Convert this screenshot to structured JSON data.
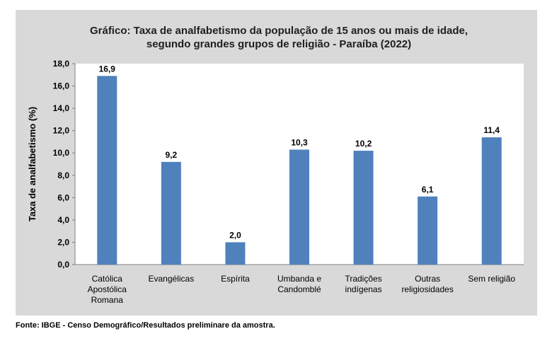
{
  "chart_data": {
    "type": "bar",
    "title_lines": [
      "Gráfico: Taxa de analfabetismo da população de 15 anos ou mais de idade,",
      "segundo grandes grupos de religião - Paraíba (2022)"
    ],
    "categories": [
      [
        "Católica",
        "Apostólica",
        "Romana"
      ],
      [
        "Evangélicas"
      ],
      [
        "Espírita"
      ],
      [
        "Umbanda e",
        "Candomblé"
      ],
      [
        "Tradições",
        "indígenas"
      ],
      [
        "Outras",
        "religiosidades"
      ],
      [
        "Sem religião"
      ]
    ],
    "values": [
      16.9,
      9.2,
      2.0,
      10.3,
      10.2,
      6.1,
      11.4
    ],
    "data_labels": [
      "16,9",
      "9,2",
      "2,0",
      "10,3",
      "10,2",
      "6,1",
      "11,4"
    ],
    "ylabel": "Taxa de analfabetismo (%)",
    "xlabel": "",
    "ylim": [
      0,
      18
    ],
    "yticks": [
      0,
      2,
      4,
      6,
      8,
      10,
      12,
      14,
      16,
      18
    ],
    "ytick_labels": [
      "0,0",
      "2,0",
      "4,0",
      "6,0",
      "8,0",
      "10,0",
      "12,0",
      "14,0",
      "16,0",
      "18,0"
    ],
    "grid": false,
    "legend": "none",
    "bar_color": "#4f81bd"
  },
  "source": "Fonte: IBGE - Censo Demográfico/Resultados preliminare da amostra."
}
